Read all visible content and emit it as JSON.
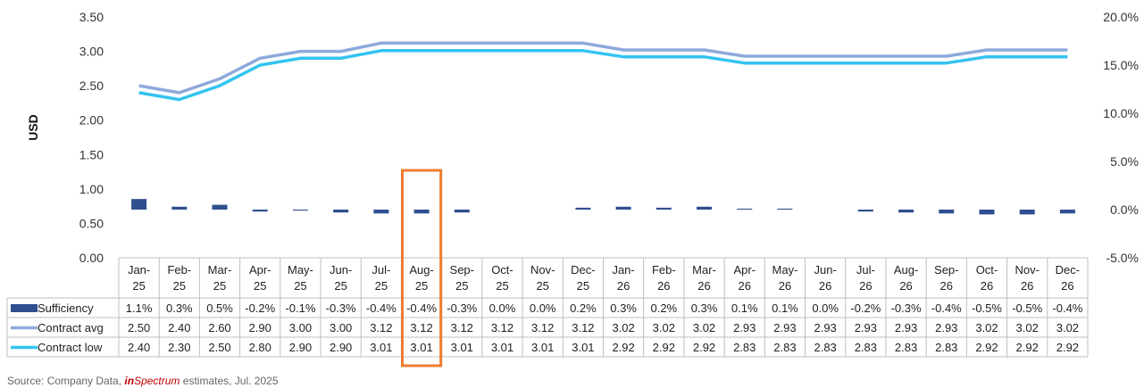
{
  "chart_data": {
    "type": "bar+line",
    "ylabel": "USD",
    "y_left_ticks": [
      "3.50",
      "3.00",
      "2.50",
      "2.00",
      "1.50",
      "1.00",
      "0.50",
      "0.00"
    ],
    "y_left_range": [
      0,
      3.5
    ],
    "y_right_ticks": [
      "20.0%",
      "15.0%",
      "10.0%",
      "5.0%",
      "0.0%",
      "-5.0%"
    ],
    "y_right_range": [
      -5,
      20
    ],
    "categories": [
      "Jan-25",
      "Feb-25",
      "Mar-25",
      "Apr-25",
      "May-25",
      "Jun-25",
      "Jul-25",
      "Aug-25",
      "Sep-25",
      "Oct-25",
      "Nov-25",
      "Dec-25",
      "Jan-26",
      "Feb-26",
      "Mar-26",
      "Apr-26",
      "May-26",
      "Jun-26",
      "Jul-26",
      "Aug-26",
      "Sep-26",
      "Oct-26",
      "Nov-26",
      "Dec-26"
    ],
    "category_lines": [
      [
        "Jan-",
        "25"
      ],
      [
        "Feb-",
        "25"
      ],
      [
        "Mar-",
        "25"
      ],
      [
        "Apr-",
        "25"
      ],
      [
        "May-",
        "25"
      ],
      [
        "Jun-",
        "25"
      ],
      [
        "Jul-",
        "25"
      ],
      [
        "Aug-",
        "25"
      ],
      [
        "Sep-",
        "25"
      ],
      [
        "Oct-",
        "25"
      ],
      [
        "Nov-",
        "25"
      ],
      [
        "Dec-",
        "25"
      ],
      [
        "Jan-",
        "26"
      ],
      [
        "Feb-",
        "26"
      ],
      [
        "Mar-",
        "26"
      ],
      [
        "Apr-",
        "26"
      ],
      [
        "May-",
        "26"
      ],
      [
        "Jun-",
        "26"
      ],
      [
        "Jul-",
        "26"
      ],
      [
        "Aug-",
        "26"
      ],
      [
        "Sep-",
        "26"
      ],
      [
        "Oct-",
        "26"
      ],
      [
        "Nov-",
        "26"
      ],
      [
        "Dec-",
        "26"
      ]
    ],
    "series": [
      {
        "name": "Sufficiency",
        "kind": "bar",
        "axis": "right",
        "color": "#2f4f8f",
        "values": [
          1.1,
          0.3,
          0.5,
          -0.2,
          -0.1,
          -0.3,
          -0.4,
          -0.4,
          -0.3,
          0.0,
          0.0,
          0.2,
          0.3,
          0.2,
          0.3,
          0.1,
          0.1,
          0.0,
          -0.2,
          -0.3,
          -0.4,
          -0.5,
          -0.5,
          -0.4
        ],
        "labels": [
          "1.1%",
          "0.3%",
          "0.5%",
          "-0.2%",
          "-0.1%",
          "-0.3%",
          "-0.4%",
          "-0.4%",
          "-0.3%",
          "0.0%",
          "0.0%",
          "0.2%",
          "0.3%",
          "0.2%",
          "0.3%",
          "0.1%",
          "0.1%",
          "0.0%",
          "-0.2%",
          "-0.3%",
          "-0.4%",
          "-0.5%",
          "-0.5%",
          "-0.4%"
        ]
      },
      {
        "name": "Contract avg",
        "kind": "line",
        "axis": "left",
        "color": "#8ea9db",
        "values": [
          2.5,
          2.4,
          2.6,
          2.9,
          3.0,
          3.0,
          3.12,
          3.12,
          3.12,
          3.12,
          3.12,
          3.12,
          3.02,
          3.02,
          3.02,
          2.93,
          2.93,
          2.93,
          2.93,
          2.93,
          2.93,
          3.02,
          3.02,
          3.02
        ],
        "labels": [
          "2.50",
          "2.40",
          "2.60",
          "2.90",
          "3.00",
          "3.00",
          "3.12",
          "3.12",
          "3.12",
          "3.12",
          "3.12",
          "3.12",
          "3.02",
          "3.02",
          "3.02",
          "2.93",
          "2.93",
          "2.93",
          "2.93",
          "2.93",
          "2.93",
          "3.02",
          "3.02",
          "3.02"
        ]
      },
      {
        "name": "Contract low",
        "kind": "line",
        "axis": "left",
        "color": "#33c3f0",
        "values": [
          2.4,
          2.3,
          2.5,
          2.8,
          2.9,
          2.9,
          3.01,
          3.01,
          3.01,
          3.01,
          3.01,
          3.01,
          2.92,
          2.92,
          2.92,
          2.83,
          2.83,
          2.83,
          2.83,
          2.83,
          2.83,
          2.92,
          2.92,
          2.92
        ],
        "labels": [
          "2.40",
          "2.30",
          "2.50",
          "2.80",
          "2.90",
          "2.90",
          "3.01",
          "3.01",
          "3.01",
          "3.01",
          "3.01",
          "3.01",
          "2.92",
          "2.92",
          "2.92",
          "2.83",
          "2.83",
          "2.83",
          "2.83",
          "2.83",
          "2.83",
          "2.92",
          "2.92",
          "2.92"
        ]
      }
    ],
    "highlight_category": "Aug-25",
    "highlight_color": "#ed7d31",
    "legend_placement": "data-table",
    "grid": false
  },
  "source": {
    "prefix": "Source: Company Data, ",
    "brand_a": "in",
    "brand_b": "Spectrum",
    "suffix": " estimates, Jul. 2025"
  }
}
